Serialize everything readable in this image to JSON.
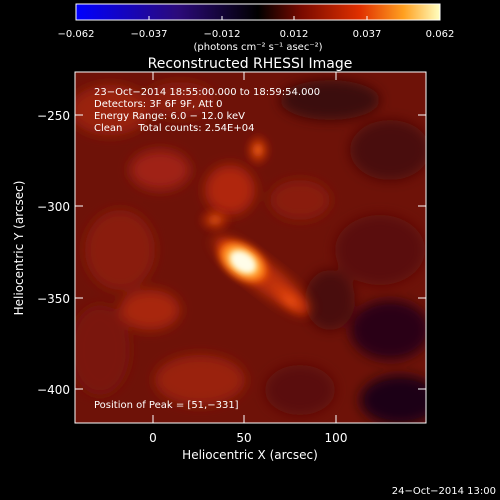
{
  "colorbar": {
    "tick_labels": [
      "−0.062",
      "−0.037",
      "−0.012",
      "0.012",
      "0.037",
      "0.062"
    ],
    "units": "(photons cm⁻² s⁻¹ asec⁻²)"
  },
  "plot": {
    "title": "Reconstructed RHESSI Image",
    "xlabel": "Heliocentric X (arcsec)",
    "ylabel": "Heliocentric Y (arcsec)",
    "x_ticks": [
      "0",
      "50",
      "100"
    ],
    "y_ticks": [
      "−250",
      "−300",
      "−350",
      "−400"
    ],
    "info_lines": [
      "23−Oct−2014 18:55:00.000 to 18:59:54.000",
      "Detectors: 3F 6F 9F, Att 0",
      "Energy Range: 6.0 − 12.0 keV",
      "Clean     Total counts: 2.54E+04"
    ],
    "peak_label": "Position of Peak = [51,−331]"
  },
  "footer": {
    "date": "24−Oct−2014 13:00"
  },
  "colors": {
    "background": "#000000",
    "image_base": "#7a1208",
    "source_core": "#fff3b0",
    "source_mid": "#ff8a1e"
  }
}
